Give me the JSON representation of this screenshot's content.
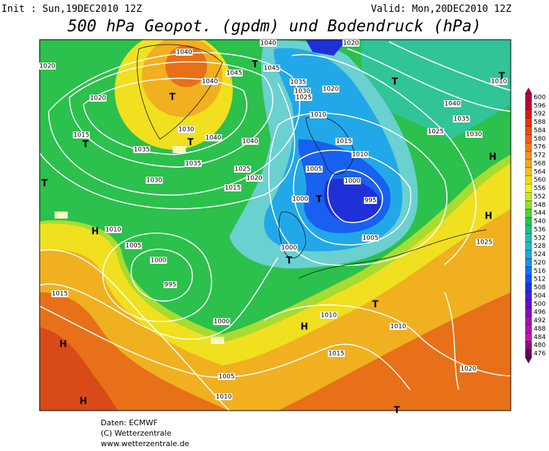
{
  "header": {
    "init": "Init : Sun,19DEC2010 12Z",
    "valid": "Valid: Mon,20DEC2010 12Z",
    "title": "500 hPa Geopot. (gpdm) und Bodendruck (hPa)"
  },
  "map": {
    "labels": [
      "1040",
      "1020",
      "1040",
      "1020",
      "1045",
      "1045",
      "1040",
      "1020",
      "1035",
      "1030",
      "1025",
      "1020",
      "1010",
      "1040",
      "1015",
      "1030",
      "1040",
      "1040",
      "1010",
      "1035",
      "1025",
      "1030",
      "1035",
      "1035",
      "1015",
      "1010",
      "1025",
      "1020",
      "1005",
      "1030",
      "1015",
      "1000",
      "1000",
      "995",
      "1010",
      "1005",
      "1005",
      "1025",
      "1000",
      "1000",
      "995",
      "1015",
      "1010",
      "1010",
      "1000",
      "1015",
      "1020",
      "1005",
      "1010",
      "552",
      "552",
      "552",
      "T",
      "T",
      "T",
      "T",
      "T",
      "T",
      "T",
      "T",
      "T",
      "T",
      "T",
      "H",
      "H",
      "H",
      "H",
      "H",
      "H"
    ]
  },
  "colorbar": {
    "levels": [
      600,
      596,
      592,
      588,
      584,
      580,
      576,
      572,
      568,
      564,
      560,
      556,
      552,
      548,
      544,
      540,
      536,
      532,
      528,
      524,
      520,
      516,
      512,
      508,
      504,
      500,
      496,
      492,
      488,
      484,
      480,
      476
    ],
    "colors": [
      "#b00040",
      "#c00030",
      "#d81818",
      "#e83010",
      "#f04810",
      "#f06010",
      "#f07818",
      "#f09020",
      "#f0a820",
      "#f0c020",
      "#f0d818",
      "#f0f020",
      "#c8e820",
      "#90e030",
      "#50d040",
      "#28c050",
      "#20c080",
      "#20c0a8",
      "#20b8c8",
      "#20a8e0",
      "#1890f0",
      "#1870f0",
      "#1850f0",
      "#2030e0",
      "#4020d8",
      "#6010c8",
      "#8010c0",
      "#a010b8",
      "#b810b0",
      "#c018a8",
      "#900880",
      "#600060"
    ]
  },
  "footer": {
    "lines": [
      "Daten: ECMWF",
      "(C) Wetterzentrale",
      "www.wetterzentrale.de"
    ]
  }
}
